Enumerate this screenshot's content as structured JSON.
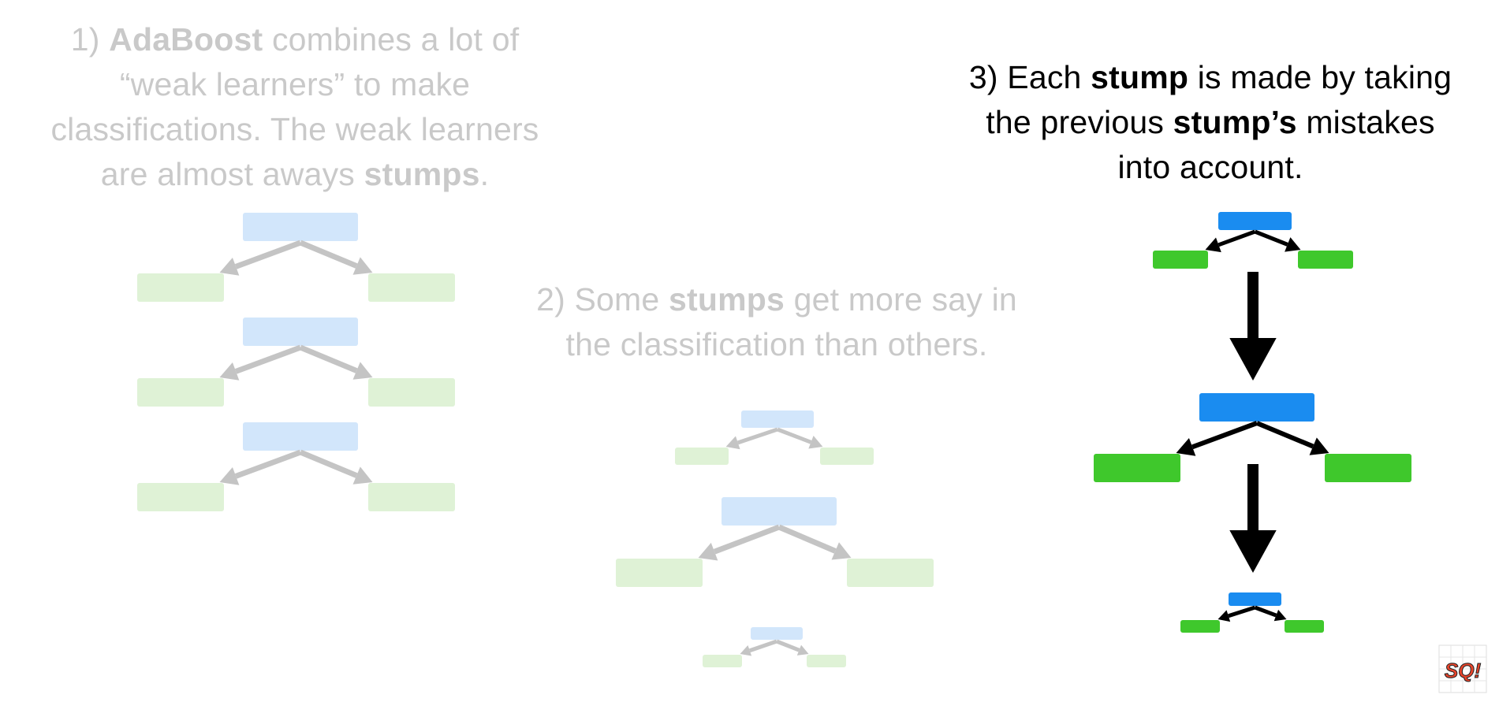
{
  "captions": {
    "c1": {
      "line1_pre": "1) ",
      "line1_bold": "AdaBoost",
      "line1_post": " combines a lot of",
      "line2": "“weak learners” to make",
      "line3": "classifications. The weak learners",
      "line4_pre": "are almost aways ",
      "line4_bold": "stumps",
      "line4_post": "."
    },
    "c2": {
      "line1_pre": "2) Some ",
      "line1_bold": "stumps",
      "line1_post": " get more say in",
      "line2": "the classification than others."
    },
    "c3": {
      "line1_pre": "3) Each ",
      "line1_bold": "stump",
      "line1_post": " is made by taking",
      "line2_pre": "the previous ",
      "line2_bold": "stump’s",
      "line2_post": " mistakes",
      "line3": "into account."
    }
  },
  "colors": {
    "faded_text": "#c9c9c9",
    "root_faded": "#d2e6fb",
    "leaf_faded": "#dff2d6",
    "arrow_faded": "#c4c4c4",
    "root_bold": "#1a8cf0",
    "leaf_bold": "#3fc82c",
    "arrow_bold": "#000000"
  },
  "logo": {
    "text": "SQ!",
    "icon": "statquest-logo-icon"
  }
}
